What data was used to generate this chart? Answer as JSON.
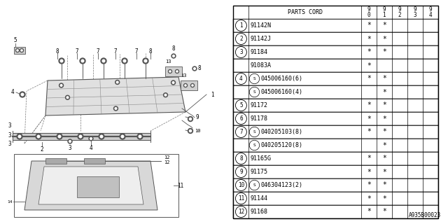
{
  "bg_color": "#ffffff",
  "diagram_ref": "A935B00023",
  "lc": "#999999",
  "tc": "#000000",
  "table": {
    "rows": [
      {
        "num": "1",
        "circle": true,
        "s_mark": false,
        "part": "91142N",
        "c90": true,
        "c91": true,
        "c92": false,
        "c93": false,
        "c94": false
      },
      {
        "num": "2",
        "circle": true,
        "s_mark": false,
        "part": "91142J",
        "c90": true,
        "c91": true,
        "c92": false,
        "c93": false,
        "c94": false
      },
      {
        "num": "3",
        "circle": true,
        "s_mark": false,
        "part": "91184",
        "c90": true,
        "c91": true,
        "c92": false,
        "c93": false,
        "c94": false
      },
      {
        "num": "",
        "circle": false,
        "s_mark": false,
        "part": "91083A",
        "c90": true,
        "c91": false,
        "c92": false,
        "c93": false,
        "c94": false
      },
      {
        "num": "4",
        "circle": true,
        "s_mark": true,
        "part": "045006160(6)",
        "c90": true,
        "c91": true,
        "c92": false,
        "c93": false,
        "c94": false
      },
      {
        "num": "",
        "circle": false,
        "s_mark": true,
        "part": "045006160(4)",
        "c90": false,
        "c91": true,
        "c92": false,
        "c93": false,
        "c94": false
      },
      {
        "num": "5",
        "circle": true,
        "s_mark": false,
        "part": "91172",
        "c90": true,
        "c91": true,
        "c92": false,
        "c93": false,
        "c94": false
      },
      {
        "num": "6",
        "circle": true,
        "s_mark": false,
        "part": "91178",
        "c90": true,
        "c91": true,
        "c92": false,
        "c93": false,
        "c94": false
      },
      {
        "num": "7",
        "circle": true,
        "s_mark": true,
        "part": "040205103(8)",
        "c90": true,
        "c91": true,
        "c92": false,
        "c93": false,
        "c94": false
      },
      {
        "num": "",
        "circle": false,
        "s_mark": true,
        "part": "040205120(8)",
        "c90": false,
        "c91": true,
        "c92": false,
        "c93": false,
        "c94": false
      },
      {
        "num": "8",
        "circle": true,
        "s_mark": false,
        "part": "91165G",
        "c90": true,
        "c91": true,
        "c92": false,
        "c93": false,
        "c94": false
      },
      {
        "num": "9",
        "circle": true,
        "s_mark": false,
        "part": "91175",
        "c90": true,
        "c91": true,
        "c92": false,
        "c93": false,
        "c94": false
      },
      {
        "num": "10",
        "circle": true,
        "s_mark": true,
        "part": "046304123(2)",
        "c90": true,
        "c91": true,
        "c92": false,
        "c93": false,
        "c94": false
      },
      {
        "num": "11",
        "circle": true,
        "s_mark": false,
        "part": "91144",
        "c90": true,
        "c91": true,
        "c92": false,
        "c93": false,
        "c94": false
      },
      {
        "num": "12",
        "circle": true,
        "s_mark": false,
        "part": "91168",
        "c90": true,
        "c91": true,
        "c92": false,
        "c93": false,
        "c94": false
      }
    ]
  }
}
